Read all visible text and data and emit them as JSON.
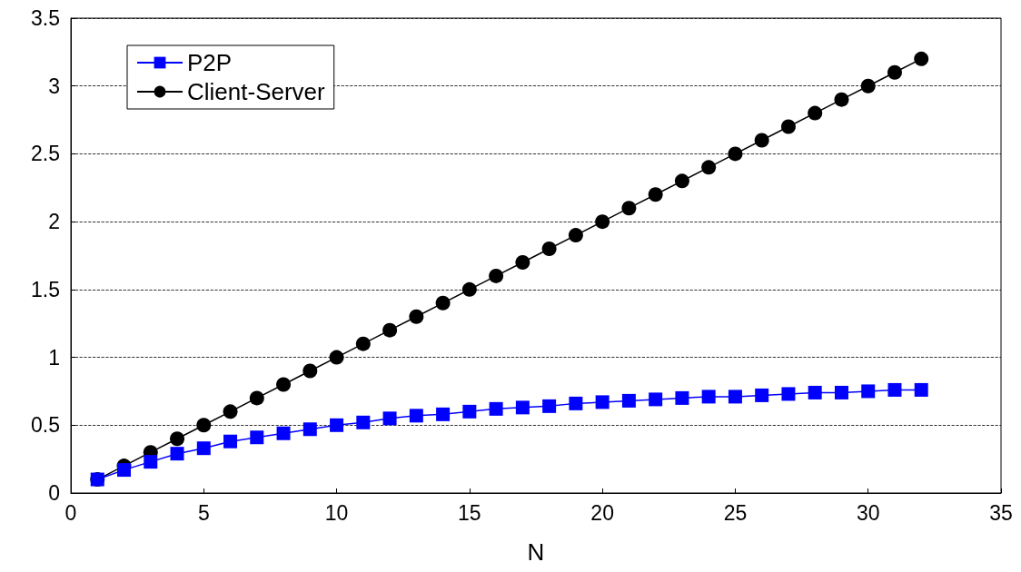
{
  "chart_data": {
    "type": "line",
    "xlabel": "N",
    "x": [
      1,
      2,
      3,
      4,
      5,
      6,
      7,
      8,
      9,
      10,
      11,
      12,
      13,
      14,
      15,
      16,
      17,
      18,
      19,
      20,
      21,
      22,
      23,
      24,
      25,
      26,
      27,
      28,
      29,
      30,
      31,
      32
    ],
    "series": [
      {
        "name": "P2P",
        "color": "#0000ff",
        "marker": "square",
        "values": [
          0.1,
          0.17,
          0.23,
          0.29,
          0.33,
          0.38,
          0.41,
          0.44,
          0.47,
          0.5,
          0.52,
          0.55,
          0.57,
          0.58,
          0.6,
          0.62,
          0.63,
          0.64,
          0.66,
          0.67,
          0.68,
          0.69,
          0.7,
          0.71,
          0.71,
          0.72,
          0.73,
          0.74,
          0.74,
          0.75,
          0.76,
          0.76
        ]
      },
      {
        "name": "Client-Server",
        "color": "#000000",
        "marker": "circle",
        "values": [
          0.1,
          0.2,
          0.3,
          0.4,
          0.5,
          0.6,
          0.7,
          0.8,
          0.9,
          1.0,
          1.1,
          1.2,
          1.3,
          1.4,
          1.5,
          1.6,
          1.7,
          1.8,
          1.9,
          2.0,
          2.1,
          2.2,
          2.3,
          2.4,
          2.5,
          2.6,
          2.7,
          2.8,
          2.9,
          3.0,
          3.1,
          3.2
        ]
      }
    ],
    "xlim": [
      0,
      35
    ],
    "xticks": [
      0,
      5,
      10,
      15,
      20,
      25,
      30,
      35
    ],
    "ylim": [
      0,
      3.5
    ],
    "yticks": [
      0,
      0.5,
      1,
      1.5,
      2,
      2.5,
      3,
      3.5
    ],
    "grid": "y",
    "legend": "top left",
    "line_style": "solid"
  }
}
